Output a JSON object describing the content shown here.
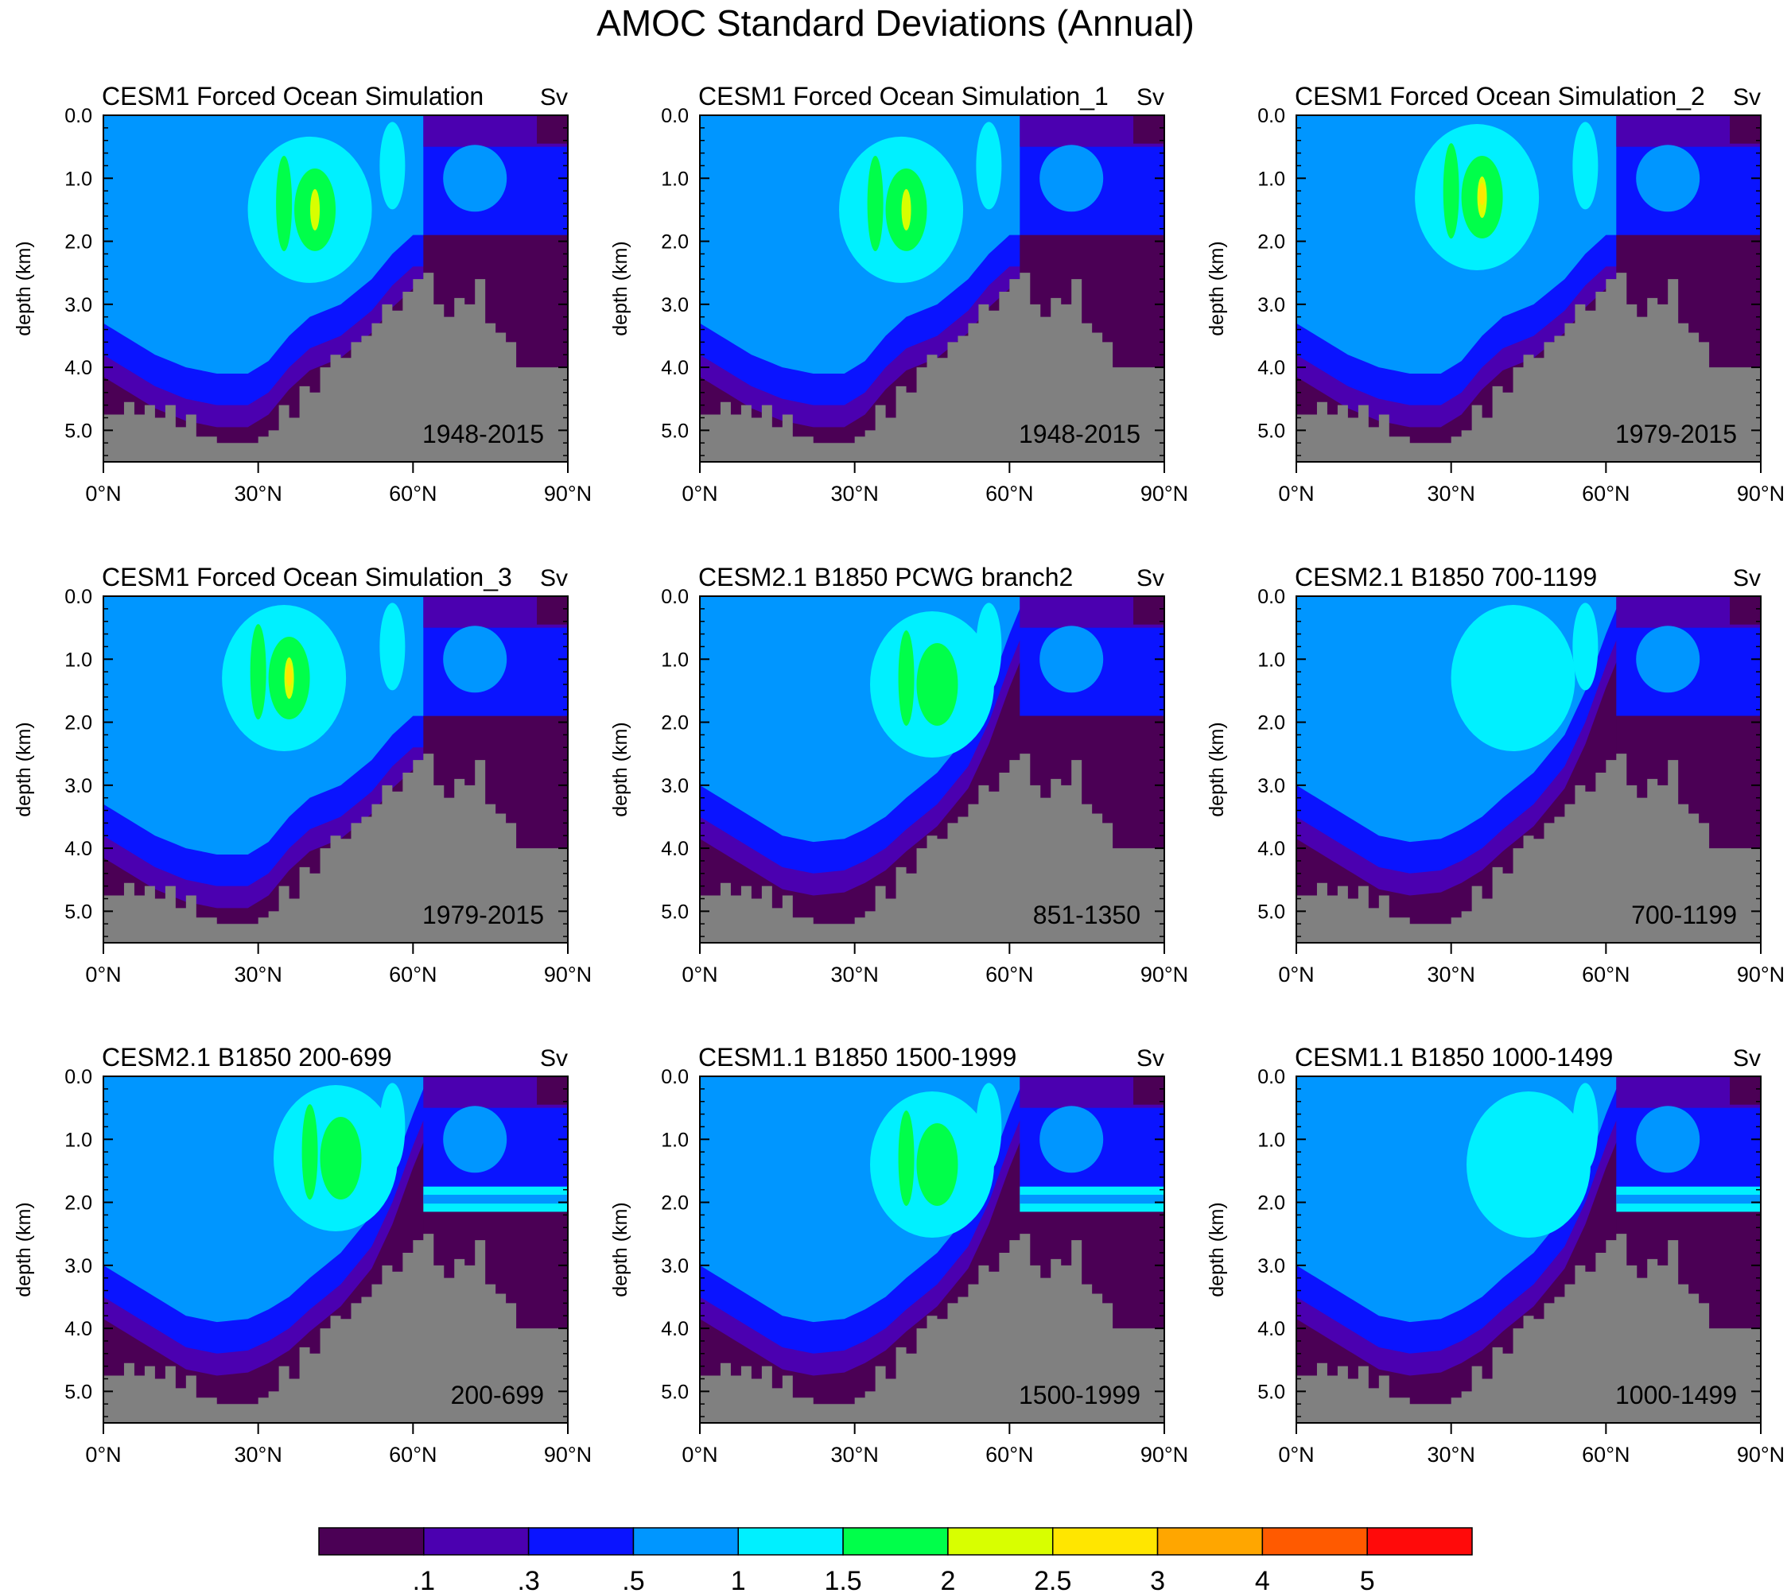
{
  "figure": {
    "title": "AMOC Standard Deviations (Annual)"
  },
  "axes": {
    "ylabel": "depth (km)",
    "y_ticks": [
      "0.0",
      "1.0",
      "2.0",
      "3.0",
      "4.0",
      "5.0"
    ],
    "x_ticks": [
      "0°N",
      "30°N",
      "60°N",
      "90°N"
    ],
    "units": "Sv"
  },
  "colorbar": {
    "colors": [
      "#4b0055",
      "#4b00b0",
      "#0a14ff",
      "#0096ff",
      "#00f0ff",
      "#00ff4a",
      "#d8ff00",
      "#ffe600",
      "#ffa600",
      "#ff5a00",
      "#ff0a0a"
    ],
    "labels": [
      ".1",
      ".3",
      ".5",
      "1",
      "1.5",
      "2",
      "2.5",
      "3",
      "4",
      "5"
    ]
  },
  "colors": {
    "land": "#808080"
  },
  "chart_data": [
    {
      "type": "heatmap",
      "title": "CESM1 Forced Ocean Simulation",
      "period": "1948-2015",
      "units": "Sv",
      "xlabel": "",
      "ylabel": "depth (km)",
      "xlim": [
        0,
        90
      ],
      "ylim": [
        5.5,
        0
      ],
      "peak_std_sv": 2.2,
      "core_std_band": "1.5-2",
      "core_lat": 41,
      "core_depth_km": 1.5
    },
    {
      "type": "heatmap",
      "title": "CESM1 Forced Ocean Simulation_1",
      "period": "1948-2015",
      "units": "Sv",
      "xlabel": "",
      "ylabel": "depth (km)",
      "xlim": [
        0,
        90
      ],
      "ylim": [
        5.5,
        0
      ],
      "peak_std_sv": 2.1,
      "core_std_band": "1.5-2",
      "core_lat": 40,
      "core_depth_km": 1.5
    },
    {
      "type": "heatmap",
      "title": "CESM1 Forced Ocean Simulation_2",
      "period": "1979-2015",
      "units": "Sv",
      "xlabel": "",
      "ylabel": "depth (km)",
      "xlim": [
        0,
        90
      ],
      "ylim": [
        5.5,
        0
      ],
      "peak_std_sv": 2.7,
      "core_std_band": "2.5-3",
      "core_lat": 36,
      "core_depth_km": 1.3
    },
    {
      "type": "heatmap",
      "title": "CESM1 Forced Ocean Simulation_3",
      "period": "1979-2015",
      "units": "Sv",
      "xlabel": "",
      "ylabel": "depth (km)",
      "xlim": [
        0,
        90
      ],
      "ylim": [
        5.5,
        0
      ],
      "peak_std_sv": 2.7,
      "core_std_band": "2.5-3",
      "core_lat": 36,
      "core_depth_km": 1.3
    },
    {
      "type": "heatmap",
      "title": "CESM2.1 B1850 PCWG branch2",
      "period": "851-1350",
      "units": "Sv",
      "xlabel": "",
      "ylabel": "depth (km)",
      "xlim": [
        0,
        90
      ],
      "ylim": [
        5.5,
        0
      ],
      "peak_std_sv": 1.7,
      "core_std_band": "1.5-2",
      "core_lat": 46,
      "core_depth_km": 1.4
    },
    {
      "type": "heatmap",
      "title": "CESM2.1 B1850 700-1199",
      "period": "700-1199",
      "units": "Sv",
      "xlabel": "",
      "ylabel": "depth (km)",
      "xlim": [
        0,
        90
      ],
      "ylim": [
        5.5,
        0
      ],
      "peak_std_sv": 1.4,
      "core_std_band": "1-1.5",
      "core_lat": 43,
      "core_depth_km": 1.3
    },
    {
      "type": "heatmap",
      "title": "CESM2.1 B1850 200-699",
      "period": "200-699",
      "units": "Sv",
      "xlabel": "",
      "ylabel": "depth (km)",
      "xlim": [
        0,
        90
      ],
      "ylim": [
        5.5,
        0
      ],
      "peak_std_sv": 1.6,
      "core_std_band": "1.5-2",
      "core_lat": 46,
      "core_depth_km": 1.3
    },
    {
      "type": "heatmap",
      "title": "CESM1.1 B1850 1500-1999",
      "period": "1500-1999",
      "units": "Sv",
      "xlabel": "",
      "ylabel": "depth (km)",
      "xlim": [
        0,
        90
      ],
      "ylim": [
        5.5,
        0
      ],
      "peak_std_sv": 1.6,
      "core_std_band": "1.5-2",
      "core_lat": 46,
      "core_depth_km": 1.4
    },
    {
      "type": "heatmap",
      "title": "CESM1.1 B1850 1000-1499",
      "period": "1000-1499",
      "units": "Sv",
      "xlabel": "",
      "ylabel": "depth (km)",
      "xlim": [
        0,
        90
      ],
      "ylim": [
        5.5,
        0
      ],
      "peak_std_sv": 1.4,
      "core_std_band": "1-1.5",
      "core_lat": 46,
      "core_depth_km": 1.4
    }
  ]
}
